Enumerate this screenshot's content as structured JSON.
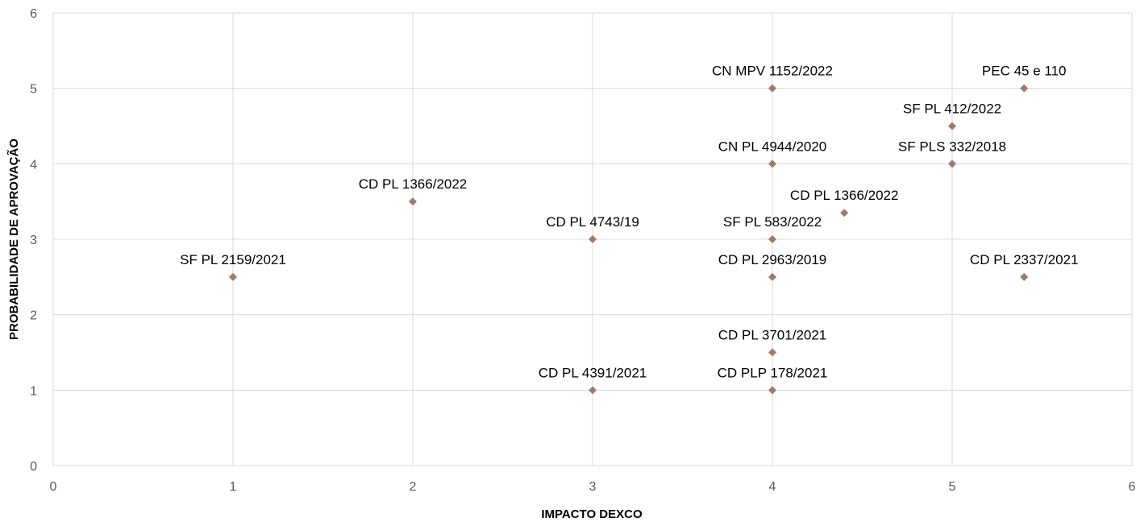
{
  "chart_data": {
    "type": "scatter",
    "title": "",
    "xlabel": "IMPACTO DEXCO",
    "ylabel": "PROBABILIDADE DE APROVAÇÃO",
    "xlim": [
      0,
      6
    ],
    "ylim": [
      0,
      6
    ],
    "xticks": [
      "0",
      "1",
      "2",
      "3",
      "4",
      "5",
      "6"
    ],
    "yticks": [
      "0",
      "1",
      "2",
      "3",
      "4",
      "5",
      "6"
    ],
    "grid": true,
    "marker_color": "#9e7b6a",
    "points": [
      {
        "x": 1,
        "y": 2.5,
        "label": "SF PL 2159/2021"
      },
      {
        "x": 2,
        "y": 3.5,
        "label": "CD PL 1366/2022"
      },
      {
        "x": 3,
        "y": 3,
        "label": "CD PL 4743/19"
      },
      {
        "x": 3,
        "y": 1,
        "label": "CD PL 4391/2021"
      },
      {
        "x": 4,
        "y": 5,
        "label": "CN MPV 1152/2022"
      },
      {
        "x": 4,
        "y": 4,
        "label": "CN PL 4944/2020"
      },
      {
        "x": 4,
        "y": 3,
        "label": "SF PL 583/2022"
      },
      {
        "x": 4,
        "y": 2.5,
        "label": "CD PL 2963/2019"
      },
      {
        "x": 4,
        "y": 1.5,
        "label": "CD PL 3701/2021"
      },
      {
        "x": 4,
        "y": 1,
        "label": "CD PLP 178/2021"
      },
      {
        "x": 4.4,
        "y": 3.35,
        "label": "CD PL 1366/2022"
      },
      {
        "x": 5,
        "y": 4.5,
        "label": "SF PL 412/2022"
      },
      {
        "x": 5,
        "y": 4,
        "label": "SF PLS 332/2018"
      },
      {
        "x": 5.4,
        "y": 5,
        "label": "PEC 45 e 110"
      },
      {
        "x": 5.4,
        "y": 2.5,
        "label": "CD PL 2337/2021"
      }
    ]
  }
}
